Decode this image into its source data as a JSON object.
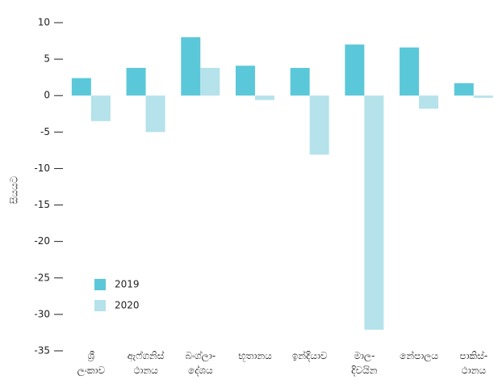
{
  "chart_data": {
    "type": "bar",
    "y_label": "සියයට",
    "categories": [
      "ශ්‍රී\nලංකාව",
      "ඇෆ්ගනිස්\nථානය",
      "බංග්ලා-\nදේශය",
      "භූතානය",
      "ඉන්දියාව",
      "මාල-\nදිවයින",
      "නේපාලය",
      "පාකිස්-\nථානය"
    ],
    "series": [
      {
        "name": "2019",
        "color": "#5bc8d9",
        "values": [
          2.4,
          3.8,
          8.0,
          4.1,
          3.8,
          7.0,
          6.6,
          1.7
        ]
      },
      {
        "name": "2020",
        "color": "#b5e2eb",
        "values": [
          -3.5,
          -5.0,
          3.8,
          -0.6,
          -8.1,
          -32.1,
          -1.8,
          -0.3
        ]
      }
    ],
    "ylim": [
      -37,
      11
    ],
    "yticks": [
      10,
      5,
      0,
      -5,
      -10,
      -15,
      -20,
      -25,
      -30,
      -35
    ],
    "grid": false
  }
}
